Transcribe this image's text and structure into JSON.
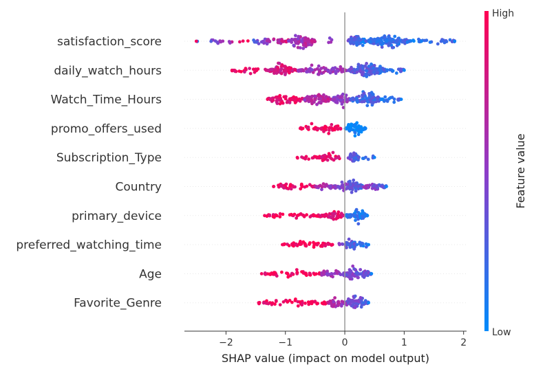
{
  "chart_data": {
    "type": "scatter",
    "subtype": "shap-beeswarm",
    "title": "",
    "xlabel": "SHAP value (impact on model output)",
    "ylabel": "",
    "xlim": [
      -2.7,
      2.05
    ],
    "xticks": [
      -2,
      -1,
      0,
      1,
      2
    ],
    "xtick_labels": [
      "−2",
      "−1",
      "0",
      "1",
      "2"
    ],
    "zero_line": true,
    "grid": false,
    "colorbar": {
      "label": "Feature value",
      "high": "High",
      "low": "Low",
      "high_color": "#ff0052",
      "mid_color": "#8e3cc8",
      "low_color": "#008bfb",
      "placement": "right"
    },
    "features": [
      {
        "name": "satisfaction_score",
        "min": -2.5,
        "max": 1.85,
        "clusters": [
          [
            -2.5,
            -1.6,
            0.1,
            0.12,
            0.95
          ],
          [
            -1.6,
            -0.9,
            0.3,
            0.25,
            0.9
          ],
          [
            -0.95,
            -0.5,
            1.0,
            0.5,
            0.7
          ],
          [
            -0.3,
            -0.2,
            0.15,
            0.4,
            0.5
          ],
          [
            0.05,
            0.35,
            1.0,
            0.4,
            0.1
          ],
          [
            0.35,
            1.1,
            0.9,
            0.2,
            0.2
          ],
          [
            1.1,
            1.85,
            0.2,
            0.05,
            0.3
          ]
        ]
      },
      {
        "name": "daily_watch_hours",
        "min": -1.9,
        "max": 1.0,
        "clusters": [
          [
            -1.9,
            -1.3,
            0.2,
            0.9,
            0.9
          ],
          [
            -1.3,
            -0.8,
            0.7,
            0.75,
            0.85
          ],
          [
            -0.8,
            0.05,
            0.5,
            0.55,
            0.6
          ],
          [
            0.05,
            0.7,
            1.0,
            0.35,
            0.2
          ],
          [
            0.7,
            1.0,
            0.3,
            0.1,
            0.3
          ]
        ]
      },
      {
        "name": "Watch_Time_Hours",
        "min": -1.3,
        "max": 0.95,
        "clusters": [
          [
            -1.3,
            -0.7,
            0.55,
            0.85,
            0.9
          ],
          [
            -0.7,
            -0.2,
            0.8,
            0.6,
            0.7
          ],
          [
            -0.2,
            0.1,
            0.9,
            0.5,
            0.5
          ],
          [
            0.1,
            0.6,
            1.0,
            0.25,
            0.25
          ],
          [
            0.6,
            0.95,
            0.35,
            0.1,
            0.3
          ]
        ]
      },
      {
        "name": "promo_offers_used",
        "min": -0.75,
        "max": 0.35,
        "clusters": [
          [
            -0.75,
            -0.4,
            0.3,
            0.95,
            0.95
          ],
          [
            -0.4,
            -0.05,
            0.45,
            0.95,
            0.95
          ],
          [
            0.0,
            0.35,
            0.85,
            0.0,
            0.05
          ]
        ]
      },
      {
        "name": "Subscription_Type",
        "min": -0.8,
        "max": 0.5,
        "clusters": [
          [
            -0.8,
            -0.45,
            0.2,
            0.92,
            0.92
          ],
          [
            -0.45,
            -0.05,
            0.45,
            0.9,
            0.9
          ],
          [
            0.05,
            0.25,
            0.9,
            0.45,
            0.2
          ],
          [
            0.25,
            0.5,
            0.15,
            0.1,
            0.3
          ]
        ]
      },
      {
        "name": "Country",
        "min": -1.2,
        "max": 0.7,
        "clusters": [
          [
            -1.2,
            -0.5,
            0.25,
            0.92,
            0.93
          ],
          [
            -0.5,
            -0.1,
            0.35,
            0.6,
            0.5
          ],
          [
            -0.1,
            0.3,
            0.9,
            0.5,
            0.2
          ],
          [
            0.3,
            0.7,
            0.45,
            0.65,
            0.25
          ]
        ]
      },
      {
        "name": "primary_device",
        "min": -1.35,
        "max": 0.38,
        "clusters": [
          [
            -1.35,
            -0.35,
            0.25,
            0.95,
            0.95
          ],
          [
            -0.35,
            -0.02,
            0.65,
            0.88,
            0.85
          ],
          [
            0.02,
            0.38,
            0.95,
            0.15,
            0.15
          ]
        ]
      },
      {
        "name": "preferred_watching_time",
        "min": -1.05,
        "max": 0.4,
        "clusters": [
          [
            -1.05,
            -0.2,
            0.3,
            0.95,
            0.95
          ],
          [
            -0.1,
            0.05,
            0.2,
            0.5,
            0.5
          ],
          [
            0.0,
            0.2,
            0.85,
            0.4,
            0.2
          ],
          [
            0.2,
            0.4,
            0.3,
            0.1,
            0.2
          ]
        ]
      },
      {
        "name": "Age",
        "min": -1.4,
        "max": 0.45,
        "clusters": [
          [
            -1.4,
            -0.4,
            0.25,
            0.95,
            0.95
          ],
          [
            -0.4,
            -0.05,
            0.45,
            0.6,
            0.5
          ],
          [
            -0.05,
            0.45,
            0.95,
            0.45,
            0.35
          ]
        ]
      },
      {
        "name": "Favorite_Genre",
        "min": -1.45,
        "max": 0.4,
        "clusters": [
          [
            -1.45,
            -0.3,
            0.25,
            0.95,
            0.95
          ],
          [
            -0.3,
            0.0,
            0.55,
            0.65,
            0.6
          ],
          [
            0.0,
            0.4,
            0.9,
            0.45,
            0.3
          ]
        ]
      }
    ]
  }
}
